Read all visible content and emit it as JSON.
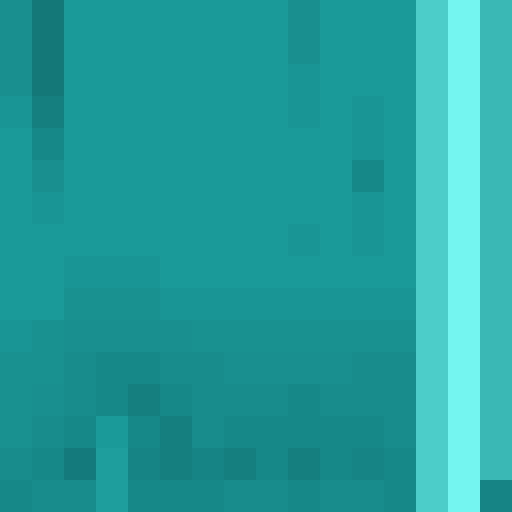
{
  "chart_data": {
    "type": "heatmap",
    "tick_labels": false,
    "color_range": [
      0,
      10
    ],
    "cells": [
      [
        4.5,
        3.5,
        5,
        5,
        5,
        5,
        5,
        5,
        5,
        4.5,
        5,
        5,
        5,
        7.5,
        9.5,
        6.5
      ],
      [
        4.5,
        3.5,
        5,
        5,
        5,
        5,
        5,
        5,
        5,
        4.5,
        5,
        5,
        5,
        7.5,
        9.5,
        6.5
      ],
      [
        4.5,
        3.5,
        5,
        5,
        5,
        5,
        5,
        5,
        5,
        4.8,
        5,
        5,
        5,
        7.5,
        9.5,
        6.5
      ],
      [
        4.8,
        3.8,
        5,
        5,
        5,
        5,
        5,
        5,
        5,
        4.8,
        5,
        4.8,
        5,
        7.5,
        9.5,
        6.5
      ],
      [
        5,
        4.2,
        5,
        5,
        5,
        5,
        5,
        5,
        5,
        5,
        5,
        4.8,
        5,
        7.5,
        9.5,
        6.5
      ],
      [
        5,
        4.5,
        5,
        5,
        5,
        5,
        5,
        5,
        5,
        5,
        5,
        4.2,
        5,
        7.5,
        9.5,
        6.5
      ],
      [
        5,
        4.8,
        5,
        5,
        5,
        5,
        5,
        5,
        5,
        5,
        5,
        4.8,
        5,
        7.5,
        9.5,
        6.5
      ],
      [
        5,
        5,
        5,
        5,
        5,
        5,
        5,
        5,
        5,
        4.8,
        5,
        4.8,
        5,
        7.5,
        9.5,
        6.5
      ],
      [
        5,
        5,
        4.8,
        4.8,
        4.8,
        5,
        5,
        5,
        5,
        5,
        5,
        5,
        5,
        7.5,
        9.5,
        6.5
      ],
      [
        5,
        5,
        4.6,
        4.6,
        4.6,
        4.8,
        4.8,
        4.8,
        4.8,
        4.8,
        4.8,
        4.8,
        4.8,
        7.5,
        9.5,
        6.5
      ],
      [
        4.8,
        4.6,
        4.5,
        4.5,
        4.5,
        4.5,
        4.6,
        4.6,
        4.6,
        4.6,
        4.6,
        4.6,
        4.6,
        7.5,
        9.5,
        6.5
      ],
      [
        4.6,
        4.6,
        4.4,
        4.2,
        4.2,
        4.4,
        4.4,
        4.5,
        4.5,
        4.5,
        4.5,
        4.4,
        4.4,
        7.5,
        9.5,
        6.5
      ],
      [
        4.6,
        4.5,
        4.4,
        4.2,
        3.8,
        4.2,
        4.4,
        4.4,
        4.4,
        4.2,
        4.4,
        4.4,
        4.4,
        7.5,
        9.5,
        6.5
      ],
      [
        4.6,
        4.4,
        4.2,
        5,
        4.2,
        3.8,
        4.4,
        4.2,
        4.2,
        4.2,
        4.2,
        4.2,
        4.4,
        7.5,
        9.5,
        6.5
      ],
      [
        4.4,
        4.2,
        3.6,
        5.2,
        4,
        3.8,
        4,
        3.8,
        4.2,
        3.8,
        4.2,
        4,
        4.2,
        7.5,
        9.5,
        6.5
      ],
      [
        4.2,
        4.4,
        4.4,
        5.2,
        4.2,
        4.2,
        4.2,
        4.4,
        4.4,
        4.2,
        4.4,
        4.4,
        4.2,
        7.5,
        9.5,
        4
      ]
    ]
  }
}
